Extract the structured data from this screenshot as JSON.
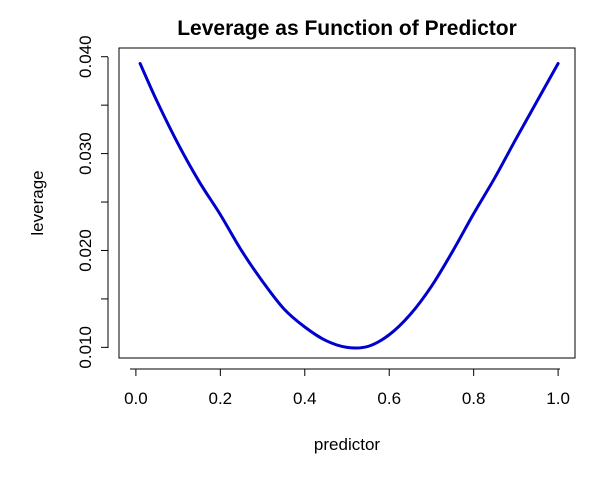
{
  "chart_data": {
    "type": "line",
    "title": "Leverage as Function of Predictor",
    "xlabel": "predictor",
    "ylabel": "leverage",
    "xlim": [
      -0.04,
      1.04
    ],
    "ylim": [
      0.0089,
      0.0409
    ],
    "x_ticks": [
      {
        "value": 0.0,
        "label": "0.0"
      },
      {
        "value": 0.2,
        "label": "0.2"
      },
      {
        "value": 0.4,
        "label": "0.4"
      },
      {
        "value": 0.6,
        "label": "0.6"
      },
      {
        "value": 0.8,
        "label": "0.8"
      },
      {
        "value": 1.0,
        "label": "1.0"
      }
    ],
    "y_ticks": [
      {
        "value": 0.01,
        "label": "0.010"
      },
      {
        "value": 0.015,
        "label": ""
      },
      {
        "value": 0.02,
        "label": "0.020"
      },
      {
        "value": 0.025,
        "label": ""
      },
      {
        "value": 0.03,
        "label": "0.030"
      },
      {
        "value": 0.035,
        "label": ""
      },
      {
        "value": 0.04,
        "label": "0.040"
      }
    ],
    "grid": false,
    "series": [
      {
        "color": "#0000CD",
        "x": [
          0.01,
          0.05,
          0.1,
          0.15,
          0.2,
          0.25,
          0.3,
          0.35,
          0.4,
          0.45,
          0.5,
          0.55,
          0.6,
          0.65,
          0.7,
          0.75,
          0.8,
          0.85,
          0.9,
          0.95,
          1.0
        ],
        "y": [
          0.0393,
          0.0354,
          0.031,
          0.0271,
          0.0237,
          0.02,
          0.0168,
          0.014,
          0.0121,
          0.0107,
          0.01,
          0.0101,
          0.0113,
          0.0134,
          0.0163,
          0.0199,
          0.0238,
          0.0275,
          0.0315,
          0.0354,
          0.0393
        ]
      }
    ]
  }
}
